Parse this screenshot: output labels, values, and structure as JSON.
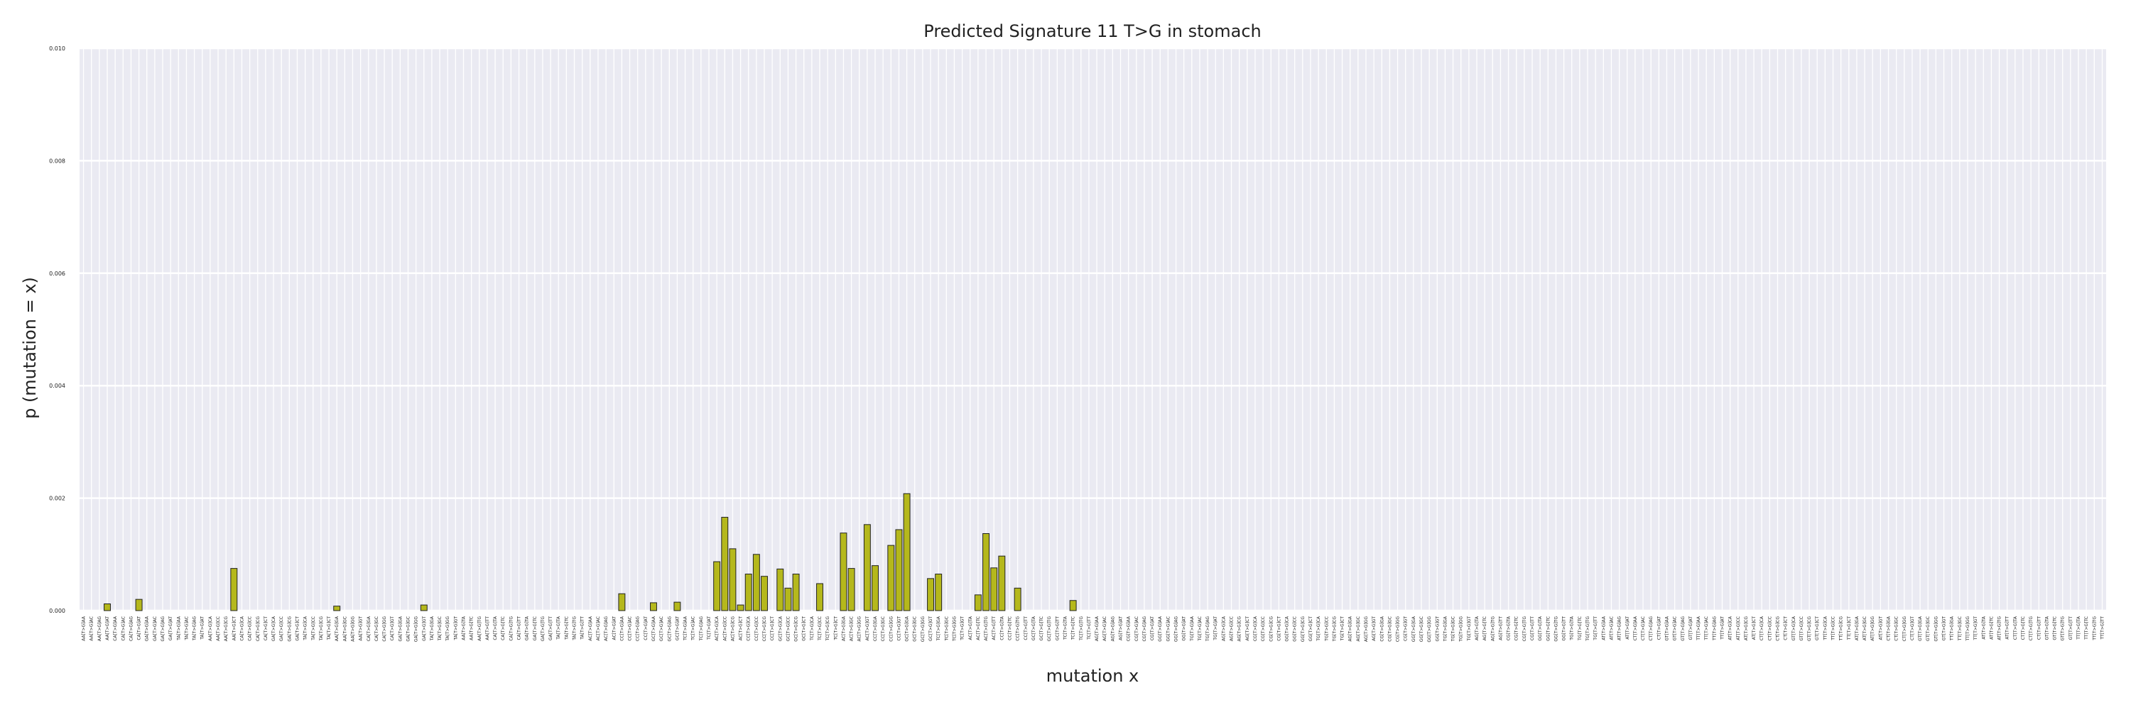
{
  "chart_data": {
    "type": "bar",
    "title": "Predicted Signature 11 T>G in stomach",
    "xlabel": "mutation x",
    "ylabel": "p (mutation = x)",
    "ylim": [
      0,
      0.01
    ],
    "yticks": [
      "0.000",
      "0.002",
      "0.004",
      "0.006",
      "0.008",
      "0.010"
    ],
    "grid": true,
    "bar_color": "#b5b81c",
    "bar_edge_color": "#222222",
    "background_color": "#eaeaf2",
    "categories": [
      "AA[T>G]AA",
      "AA[T>G]AC",
      "AA[T>G]AG",
      "AA[T>G]AT",
      "CA[T>G]AA",
      "CA[T>G]AC",
      "CA[T>G]AG",
      "CA[T>G]AT",
      "GA[T>G]AA",
      "GA[T>G]AC",
      "GA[T>G]AG",
      "GA[T>G]AT",
      "TA[T>G]AA",
      "TA[T>G]AC",
      "TA[T>G]AG",
      "TA[T>G]AT",
      "AA[T>G]CA",
      "AA[T>G]CC",
      "AA[T>G]CG",
      "AA[T>G]CT",
      "CA[T>G]CA",
      "CA[T>G]CC",
      "CA[T>G]CG",
      "CA[T>G]CT",
      "GA[T>G]CA",
      "GA[T>G]CC",
      "GA[T>G]CG",
      "GA[T>G]CT",
      "TA[T>G]CA",
      "TA[T>G]CC",
      "TA[T>G]CG",
      "TA[T>G]CT",
      "AA[T>G]GA",
      "AA[T>G]GC",
      "AA[T>G]GG",
      "AA[T>G]GT",
      "CA[T>G]GA",
      "CA[T>G]GC",
      "CA[T>G]GG",
      "CA[T>G]GT",
      "GA[T>G]GA",
      "GA[T>G]GC",
      "GA[T>G]GG",
      "GA[T>G]GT",
      "TA[T>G]GA",
      "TA[T>G]GC",
      "TA[T>G]GG",
      "TA[T>G]GT",
      "AA[T>G]TA",
      "AA[T>G]TC",
      "AA[T>G]TG",
      "AA[T>G]TT",
      "CA[T>G]TA",
      "CA[T>G]TC",
      "CA[T>G]TG",
      "CA[T>G]TT",
      "GA[T>G]TA",
      "GA[T>G]TC",
      "GA[T>G]TG",
      "GA[T>G]TT",
      "TA[T>G]TA",
      "TA[T>G]TC",
      "TA[T>G]TG",
      "TA[T>G]TT",
      "AC[T>G]AA",
      "AC[T>G]AC",
      "AC[T>G]AG",
      "AC[T>G]AT",
      "CC[T>G]AA",
      "CC[T>G]AC",
      "CC[T>G]AG",
      "CC[T>G]AT",
      "GC[T>G]AA",
      "GC[T>G]AC",
      "GC[T>G]AG",
      "GC[T>G]AT",
      "TC[T>G]AA",
      "TC[T>G]AC",
      "TC[T>G]AG",
      "TC[T>G]AT",
      "AC[T>G]CA",
      "AC[T>G]CC",
      "AC[T>G]CG",
      "AC[T>G]CT",
      "CC[T>G]CA",
      "CC[T>G]CC",
      "CC[T>G]CG",
      "CC[T>G]CT",
      "GC[T>G]CA",
      "GC[T>G]CC",
      "GC[T>G]CG",
      "GC[T>G]CT",
      "TC[T>G]CA",
      "TC[T>G]CC",
      "TC[T>G]CG",
      "TC[T>G]CT",
      "AC[T>G]GA",
      "AC[T>G]GC",
      "AC[T>G]GG",
      "AC[T>G]GT",
      "CC[T>G]GA",
      "CC[T>G]GC",
      "CC[T>G]GG",
      "CC[T>G]GT",
      "GC[T>G]GA",
      "GC[T>G]GC",
      "GC[T>G]GG",
      "GC[T>G]GT",
      "TC[T>G]GA",
      "TC[T>G]GC",
      "TC[T>G]GG",
      "TC[T>G]GT",
      "AC[T>G]TA",
      "AC[T>G]TC",
      "AC[T>G]TG",
      "AC[T>G]TT",
      "CC[T>G]TA",
      "CC[T>G]TC",
      "CC[T>G]TG",
      "CC[T>G]TT",
      "GC[T>G]TA",
      "GC[T>G]TC",
      "GC[T>G]TG",
      "GC[T>G]TT",
      "TC[T>G]TA",
      "TC[T>G]TC",
      "TC[T>G]TG",
      "TC[T>G]TT",
      "AG[T>G]AA",
      "AG[T>G]AC",
      "AG[T>G]AG",
      "AG[T>G]AT",
      "CG[T>G]AA",
      "CG[T>G]AC",
      "CG[T>G]AG",
      "CG[T>G]AT",
      "GG[T>G]AA",
      "GG[T>G]AC",
      "GG[T>G]AG",
      "GG[T>G]AT",
      "TG[T>G]AA",
      "TG[T>G]AC",
      "TG[T>G]AG",
      "TG[T>G]AT",
      "AG[T>G]CA",
      "AG[T>G]CC",
      "AG[T>G]CG",
      "AG[T>G]CT",
      "CG[T>G]CA",
      "CG[T>G]CC",
      "CG[T>G]CG",
      "CG[T>G]CT",
      "GG[T>G]CA",
      "GG[T>G]CC",
      "GG[T>G]CG",
      "GG[T>G]CT",
      "TG[T>G]CA",
      "TG[T>G]CC",
      "TG[T>G]CG",
      "TG[T>G]CT",
      "AG[T>G]GA",
      "AG[T>G]GC",
      "AG[T>G]GG",
      "AG[T>G]GT",
      "CG[T>G]GA",
      "CG[T>G]GC",
      "CG[T>G]GG",
      "CG[T>G]GT",
      "GG[T>G]GA",
      "GG[T>G]GC",
      "GG[T>G]GG",
      "GG[T>G]GT",
      "TG[T>G]GA",
      "TG[T>G]GC",
      "TG[T>G]GG",
      "TG[T>G]GT",
      "AG[T>G]TA",
      "AG[T>G]TC",
      "AG[T>G]TG",
      "AG[T>G]TT",
      "CG[T>G]TA",
      "CG[T>G]TC",
      "CG[T>G]TG",
      "CG[T>G]TT",
      "GG[T>G]TA",
      "GG[T>G]TC",
      "GG[T>G]TG",
      "GG[T>G]TT",
      "TG[T>G]TA",
      "TG[T>G]TC",
      "TG[T>G]TG",
      "TG[T>G]TT",
      "AT[T>G]AA",
      "AT[T>G]AC",
      "AT[T>G]AG",
      "AT[T>G]AT",
      "CT[T>G]AA",
      "CT[T>G]AC",
      "CT[T>G]AG",
      "CT[T>G]AT",
      "GT[T>G]AA",
      "GT[T>G]AC",
      "GT[T>G]AG",
      "GT[T>G]AT",
      "TT[T>G]AA",
      "TT[T>G]AC",
      "TT[T>G]AG",
      "TT[T>G]AT",
      "AT[T>G]CA",
      "AT[T>G]CC",
      "AT[T>G]CG",
      "AT[T>G]CT",
      "CT[T>G]CA",
      "CT[T>G]CC",
      "CT[T>G]CG",
      "CT[T>G]CT",
      "GT[T>G]CA",
      "GT[T>G]CC",
      "GT[T>G]CG",
      "GT[T>G]CT",
      "TT[T>G]CA",
      "TT[T>G]CC",
      "TT[T>G]CG",
      "TT[T>G]CT",
      "AT[T>G]GA",
      "AT[T>G]GC",
      "AT[T>G]GG",
      "AT[T>G]GT",
      "CT[T>G]GA",
      "CT[T>G]GC",
      "CT[T>G]GG",
      "CT[T>G]GT",
      "GT[T>G]GA",
      "GT[T>G]GC",
      "GT[T>G]GG",
      "GT[T>G]GT",
      "TT[T>G]GA",
      "TT[T>G]GC",
      "TT[T>G]GG",
      "TT[T>G]GT",
      "AT[T>G]TA",
      "AT[T>G]TC",
      "AT[T>G]TG",
      "AT[T>G]TT",
      "CT[T>G]TA",
      "CT[T>G]TC",
      "CT[T>G]TG",
      "CT[T>G]TT",
      "GT[T>G]TA",
      "GT[T>G]TC",
      "GT[T>G]TG",
      "GT[T>G]TT",
      "TT[T>G]TA",
      "TT[T>G]TC",
      "TT[T>G]TG",
      "TT[T>G]TT"
    ],
    "nonzero": [
      [
        3,
        0.00012
      ],
      [
        7,
        0.0002
      ],
      [
        19,
        0.00075
      ],
      [
        32,
        8e-05
      ],
      [
        43,
        0.0001
      ],
      [
        68,
        0.0003
      ],
      [
        72,
        0.00014
      ],
      [
        75,
        0.00015
      ],
      [
        80,
        0.00087
      ],
      [
        81,
        0.00166
      ],
      [
        82,
        0.0011
      ],
      [
        83,
        0.0001
      ],
      [
        84,
        0.00065
      ],
      [
        85,
        0.001
      ],
      [
        86,
        0.00061
      ],
      [
        88,
        0.00074
      ],
      [
        89,
        0.0004
      ],
      [
        90,
        0.00065
      ],
      [
        93,
        0.00048
      ],
      [
        96,
        0.00138
      ],
      [
        97,
        0.00075
      ],
      [
        99,
        0.00153
      ],
      [
        100,
        0.0008
      ],
      [
        102,
        0.00116
      ],
      [
        103,
        0.00144
      ],
      [
        104,
        0.00208
      ],
      [
        107,
        0.00057
      ],
      [
        108,
        0.00065
      ],
      [
        113,
        0.00028
      ],
      [
        114,
        0.00137
      ],
      [
        115,
        0.00076
      ],
      [
        116,
        0.00097
      ],
      [
        118,
        0.0004
      ],
      [
        125,
        0.00018
      ]
    ]
  }
}
